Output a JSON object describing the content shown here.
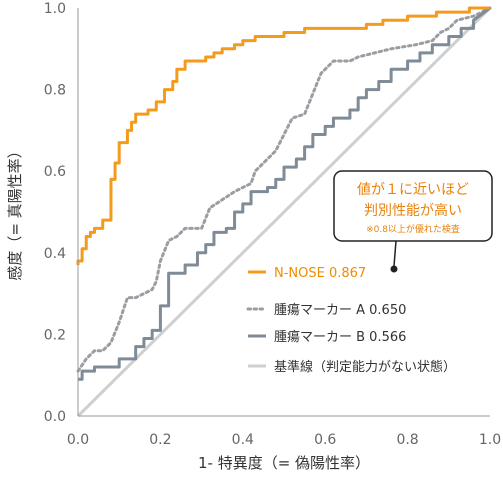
{
  "chart_data": {
    "type": "line",
    "title": "",
    "xlabel": "1- 特異度（= 偽陽性率）",
    "ylabel": "感度（= 真陽性率）",
    "xlim": [
      0,
      1
    ],
    "ylim": [
      0,
      1
    ],
    "x_ticks": [
      "0.0",
      "0.2",
      "0.4",
      "0.6",
      "0.8",
      "1.0"
    ],
    "y_ticks": [
      "0.0",
      "0.2",
      "0.4",
      "0.6",
      "0.8",
      "1.0"
    ],
    "grid": false,
    "legend_position": "inside-lower-right",
    "series": [
      {
        "name": "N-NOSE 0.867",
        "color": "#f59b1c",
        "style": "solid",
        "points": [
          [
            0,
            0.37
          ],
          [
            0,
            0.38
          ],
          [
            0.01,
            0.38
          ],
          [
            0.01,
            0.41
          ],
          [
            0.02,
            0.41
          ],
          [
            0.02,
            0.44
          ],
          [
            0.03,
            0.44
          ],
          [
            0.03,
            0.45
          ],
          [
            0.04,
            0.45
          ],
          [
            0.04,
            0.46
          ],
          [
            0.06,
            0.46
          ],
          [
            0.06,
            0.48
          ],
          [
            0.08,
            0.48
          ],
          [
            0.08,
            0.58
          ],
          [
            0.09,
            0.58
          ],
          [
            0.09,
            0.62
          ],
          [
            0.1,
            0.62
          ],
          [
            0.1,
            0.67
          ],
          [
            0.12,
            0.67
          ],
          [
            0.12,
            0.7
          ],
          [
            0.13,
            0.7
          ],
          [
            0.13,
            0.72
          ],
          [
            0.14,
            0.72
          ],
          [
            0.14,
            0.74
          ],
          [
            0.17,
            0.74
          ],
          [
            0.17,
            0.75
          ],
          [
            0.19,
            0.75
          ],
          [
            0.19,
            0.77
          ],
          [
            0.21,
            0.77
          ],
          [
            0.21,
            0.8
          ],
          [
            0.23,
            0.8
          ],
          [
            0.23,
            0.82
          ],
          [
            0.24,
            0.82
          ],
          [
            0.24,
            0.85
          ],
          [
            0.26,
            0.85
          ],
          [
            0.26,
            0.87
          ],
          [
            0.31,
            0.87
          ],
          [
            0.31,
            0.88
          ],
          [
            0.33,
            0.88
          ],
          [
            0.33,
            0.89
          ],
          [
            0.35,
            0.89
          ],
          [
            0.35,
            0.9
          ],
          [
            0.38,
            0.9
          ],
          [
            0.38,
            0.91
          ],
          [
            0.4,
            0.91
          ],
          [
            0.4,
            0.92
          ],
          [
            0.43,
            0.92
          ],
          [
            0.43,
            0.93
          ],
          [
            0.5,
            0.93
          ],
          [
            0.5,
            0.94
          ],
          [
            0.55,
            0.94
          ],
          [
            0.55,
            0.95
          ],
          [
            0.7,
            0.95
          ],
          [
            0.7,
            0.96
          ],
          [
            0.74,
            0.96
          ],
          [
            0.74,
            0.97
          ],
          [
            0.8,
            0.97
          ],
          [
            0.8,
            0.98
          ],
          [
            0.87,
            0.98
          ],
          [
            0.87,
            0.99
          ],
          [
            0.95,
            0.99
          ],
          [
            0.95,
            1.0
          ],
          [
            1.0,
            1.0
          ]
        ]
      },
      {
        "name": "腫瘍マーカー A  0.650",
        "color": "#9a9ea3",
        "style": "dotted",
        "points": [
          [
            0,
            0.11
          ],
          [
            0.02,
            0.14
          ],
          [
            0.04,
            0.16
          ],
          [
            0.06,
            0.16
          ],
          [
            0.08,
            0.18
          ],
          [
            0.1,
            0.23
          ],
          [
            0.12,
            0.29
          ],
          [
            0.14,
            0.29
          ],
          [
            0.16,
            0.3
          ],
          [
            0.18,
            0.31
          ],
          [
            0.19,
            0.33
          ],
          [
            0.2,
            0.38
          ],
          [
            0.22,
            0.43
          ],
          [
            0.24,
            0.44
          ],
          [
            0.26,
            0.46
          ],
          [
            0.3,
            0.46
          ],
          [
            0.32,
            0.51
          ],
          [
            0.35,
            0.53
          ],
          [
            0.38,
            0.55
          ],
          [
            0.4,
            0.56
          ],
          [
            0.42,
            0.57
          ],
          [
            0.43,
            0.6
          ],
          [
            0.45,
            0.62
          ],
          [
            0.48,
            0.65
          ],
          [
            0.5,
            0.69
          ],
          [
            0.52,
            0.73
          ],
          [
            0.55,
            0.74
          ],
          [
            0.57,
            0.79
          ],
          [
            0.59,
            0.84
          ],
          [
            0.62,
            0.87
          ],
          [
            0.66,
            0.87
          ],
          [
            0.68,
            0.88
          ],
          [
            0.72,
            0.89
          ],
          [
            0.76,
            0.9
          ],
          [
            0.82,
            0.91
          ],
          [
            0.86,
            0.92
          ],
          [
            0.88,
            0.94
          ],
          [
            0.9,
            0.95
          ],
          [
            0.92,
            0.97
          ],
          [
            0.96,
            0.98
          ],
          [
            1.0,
            1.0
          ]
        ]
      },
      {
        "name": "腫瘍マーカー B  0.566",
        "color": "#7f8b96",
        "style": "solid",
        "points": [
          [
            0,
            0.09
          ],
          [
            0.01,
            0.09
          ],
          [
            0.01,
            0.11
          ],
          [
            0.04,
            0.11
          ],
          [
            0.04,
            0.12
          ],
          [
            0.1,
            0.12
          ],
          [
            0.1,
            0.14
          ],
          [
            0.14,
            0.14
          ],
          [
            0.14,
            0.17
          ],
          [
            0.16,
            0.17
          ],
          [
            0.16,
            0.19
          ],
          [
            0.18,
            0.19
          ],
          [
            0.18,
            0.21
          ],
          [
            0.2,
            0.21
          ],
          [
            0.2,
            0.27
          ],
          [
            0.22,
            0.27
          ],
          [
            0.22,
            0.35
          ],
          [
            0.26,
            0.35
          ],
          [
            0.26,
            0.37
          ],
          [
            0.29,
            0.37
          ],
          [
            0.29,
            0.4
          ],
          [
            0.31,
            0.4
          ],
          [
            0.31,
            0.42
          ],
          [
            0.33,
            0.42
          ],
          [
            0.33,
            0.45
          ],
          [
            0.36,
            0.45
          ],
          [
            0.36,
            0.46
          ],
          [
            0.38,
            0.46
          ],
          [
            0.38,
            0.5
          ],
          [
            0.4,
            0.5
          ],
          [
            0.4,
            0.52
          ],
          [
            0.42,
            0.52
          ],
          [
            0.42,
            0.55
          ],
          [
            0.46,
            0.55
          ],
          [
            0.46,
            0.56
          ],
          [
            0.48,
            0.56
          ],
          [
            0.48,
            0.58
          ],
          [
            0.5,
            0.58
          ],
          [
            0.5,
            0.61
          ],
          [
            0.53,
            0.61
          ],
          [
            0.53,
            0.63
          ],
          [
            0.55,
            0.63
          ],
          [
            0.55,
            0.66
          ],
          [
            0.57,
            0.66
          ],
          [
            0.57,
            0.69
          ],
          [
            0.6,
            0.69
          ],
          [
            0.6,
            0.71
          ],
          [
            0.62,
            0.71
          ],
          [
            0.62,
            0.73
          ],
          [
            0.66,
            0.73
          ],
          [
            0.66,
            0.75
          ],
          [
            0.68,
            0.75
          ],
          [
            0.68,
            0.78
          ],
          [
            0.7,
            0.78
          ],
          [
            0.7,
            0.8
          ],
          [
            0.73,
            0.8
          ],
          [
            0.73,
            0.82
          ],
          [
            0.76,
            0.82
          ],
          [
            0.76,
            0.85
          ],
          [
            0.8,
            0.85
          ],
          [
            0.8,
            0.87
          ],
          [
            0.83,
            0.87
          ],
          [
            0.83,
            0.89
          ],
          [
            0.86,
            0.89
          ],
          [
            0.86,
            0.91
          ],
          [
            0.9,
            0.91
          ],
          [
            0.9,
            0.93
          ],
          [
            0.93,
            0.93
          ],
          [
            0.93,
            0.95
          ],
          [
            0.96,
            0.95
          ],
          [
            0.96,
            0.97
          ],
          [
            1.0,
            1.0
          ]
        ]
      },
      {
        "name": "基準線（判定能力がない状態）",
        "color": "#cdcfd1",
        "style": "solid",
        "points": [
          [
            0,
            0
          ],
          [
            1,
            1
          ]
        ]
      }
    ],
    "annotations": {
      "callout_line1": "値が１に近いほど",
      "callout_line2": "判別性能が高い",
      "callout_note": "※0.8以上が優れた検査",
      "pointer_target": [
        0.76,
        0.36
      ]
    }
  }
}
